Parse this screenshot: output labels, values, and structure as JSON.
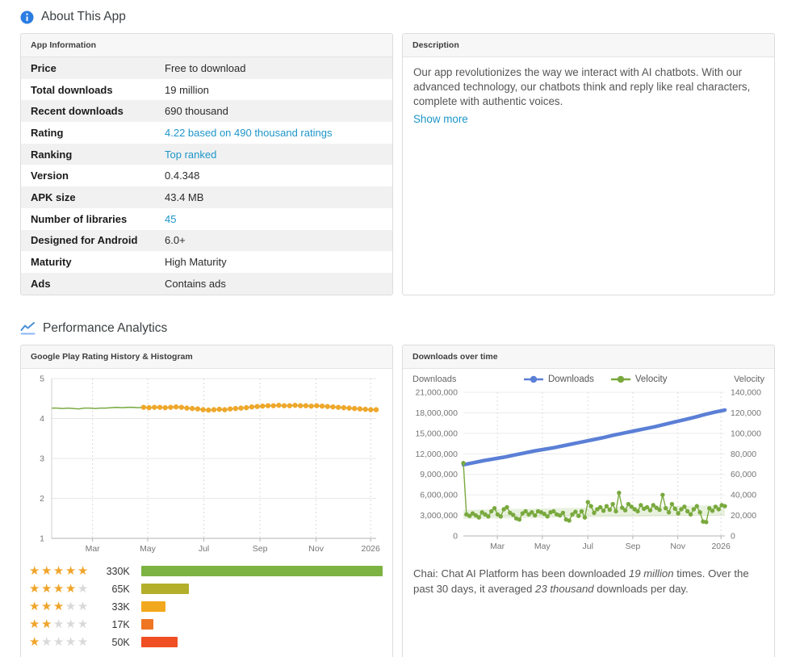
{
  "header": {
    "about_title": "About This App",
    "analytics_title": "Performance Analytics"
  },
  "app_info": {
    "panel_title": "App Information",
    "rows": [
      {
        "label": "Price",
        "value": "Free to download",
        "link": false
      },
      {
        "label": "Total downloads",
        "value": "19 million",
        "link": false
      },
      {
        "label": "Recent downloads",
        "value": "690 thousand",
        "link": false
      },
      {
        "label": "Rating",
        "value": "4.22 based on 490 thousand ratings",
        "link": true
      },
      {
        "label": "Ranking",
        "value": "Top ranked",
        "link": true
      },
      {
        "label": "Version",
        "value": "0.4.348",
        "link": false
      },
      {
        "label": "APK size",
        "value": "43.4 MB",
        "link": false
      },
      {
        "label": "Number of libraries",
        "value": "45",
        "link": true
      },
      {
        "label": "Designed for Android",
        "value": "6.0+",
        "link": false
      },
      {
        "label": "Maturity",
        "value": "High Maturity",
        "link": false
      },
      {
        "label": "Ads",
        "value": "Contains ads",
        "link": false
      }
    ]
  },
  "description": {
    "panel_title": "Description",
    "text": "Our app revolutionizes the way we interact with AI chatbots. With our advanced technology, our chatbots think and reply like real characters, complete with authentic voices.",
    "show_more_label": "Show more"
  },
  "rating_histogram": {
    "star_filled_color": "#f0a42a",
    "star_empty_color": "#d9d9d9",
    "max_value": 330,
    "rows": [
      {
        "stars": 5,
        "count_label": "330K",
        "value": 330,
        "bar_color": "#7cb342"
      },
      {
        "stars": 4,
        "count_label": "65K",
        "value": 65,
        "bar_color": "#b3af2b"
      },
      {
        "stars": 3,
        "count_label": "33K",
        "value": 33,
        "bar_color": "#f2a81d"
      },
      {
        "stars": 2,
        "count_label": "17K",
        "value": 17,
        "bar_color": "#ee7623"
      },
      {
        "stars": 1,
        "count_label": "50K",
        "value": 50,
        "bar_color": "#f04e23"
      }
    ]
  },
  "downloads_caption": {
    "segments": [
      {
        "text": "Chai: Chat AI Platform has been downloaded ",
        "italic": false
      },
      {
        "text": "19 million",
        "italic": true
      },
      {
        "text": " times. Over the past 30 days, it averaged ",
        "italic": false
      },
      {
        "text": "23 thousand",
        "italic": true
      },
      {
        "text": " downloads per day.",
        "italic": false
      }
    ]
  },
  "chart_data": [
    {
      "type": "line",
      "panel_title": "Google Play Rating History & Histogram",
      "ylim": [
        1,
        5
      ],
      "yticks": [
        5,
        4,
        3,
        2,
        1
      ],
      "x_tick_labels": [
        "Mar",
        "May",
        "Jul",
        "Sep",
        "Nov",
        "2026"
      ],
      "x_tick_positions": [
        0.126,
        0.296,
        0.469,
        0.642,
        0.815,
        0.983
      ],
      "line_color": "#7aab44",
      "dot_color": "#f0a72a",
      "dots_from_index": 17,
      "values": [
        4.26,
        4.26,
        4.25,
        4.26,
        4.25,
        4.24,
        4.26,
        4.26,
        4.25,
        4.26,
        4.26,
        4.27,
        4.28,
        4.27,
        4.28,
        4.28,
        4.27,
        4.28,
        4.27,
        4.28,
        4.28,
        4.27,
        4.28,
        4.29,
        4.28,
        4.26,
        4.25,
        4.24,
        4.22,
        4.21,
        4.22,
        4.23,
        4.22,
        4.24,
        4.25,
        4.26,
        4.27,
        4.29,
        4.3,
        4.31,
        4.32,
        4.32,
        4.33,
        4.32,
        4.32,
        4.33,
        4.32,
        4.32,
        4.31,
        4.32,
        4.31,
        4.3,
        4.29,
        4.28,
        4.27,
        4.26,
        4.25,
        4.24,
        4.23,
        4.22,
        4.22
      ]
    },
    {
      "type": "line-dual-axis",
      "panel_title": "Downloads over time",
      "left_axis": {
        "title": "Downloads",
        "max": 21000000,
        "tick_labels": [
          "21,000,000",
          "18,000,000",
          "15,000,000",
          "12,000,000",
          "9,000,000",
          "6,000,000",
          "3,000,000",
          "0"
        ]
      },
      "right_axis": {
        "title": "Velocity",
        "max": 140000,
        "tick_labels": [
          "140,000",
          "120,000",
          "100,000",
          "80,000",
          "60,000",
          "40,000",
          "20,000",
          "0"
        ]
      },
      "x_tick_labels": [
        "Mar",
        "May",
        "Jul",
        "Sep",
        "Nov",
        "2026"
      ],
      "x_tick_positions": [
        0.13,
        0.302,
        0.476,
        0.648,
        0.82,
        0.985
      ],
      "legend": [
        {
          "label": "Downloads",
          "color": "#5b7fd6"
        },
        {
          "label": "Velocity",
          "color": "#79a93e"
        }
      ],
      "downloads_series": {
        "name": "Downloads",
        "color": "#5b7fd6",
        "values": [
          10400000,
          10700000,
          11000000,
          11250000,
          11500000,
          11800000,
          12100000,
          12400000,
          12650000,
          12900000,
          13200000,
          13500000,
          13800000,
          14100000,
          14400000,
          14750000,
          15050000,
          15350000,
          15650000,
          15950000,
          16300000,
          16650000,
          17000000,
          17350000,
          17750000,
          18100000,
          18400000
        ]
      },
      "velocity_series": {
        "name": "Velocity",
        "color": "#79a93e",
        "band_color": "rgba(139,186,90,0.20)",
        "band": {
          "start": [
            16500,
            25500
          ],
          "end": [
            20000,
            30000
          ]
        },
        "values": [
          71000,
          21000,
          19500,
          22000,
          20000,
          18000,
          23000,
          21000,
          19000,
          24000,
          27000,
          21000,
          19000,
          26000,
          28000,
          22500,
          20500,
          17000,
          16000,
          22000,
          24000,
          21000,
          23000,
          20000,
          24000,
          23000,
          21500,
          19000,
          23000,
          24000,
          21000,
          20000,
          22500,
          16000,
          15000,
          21000,
          23500,
          19500,
          24000,
          18000,
          33000,
          29000,
          22500,
          26000,
          28000,
          24500,
          29000,
          25500,
          31000,
          24000,
          42000,
          27500,
          25000,
          31000,
          28500,
          26000,
          24000,
          30000,
          26500,
          28000,
          25000,
          30000,
          27500,
          25500,
          40000,
          27000,
          23000,
          31000,
          26500,
          22000,
          26000,
          28500,
          24000,
          21000,
          26000,
          29000,
          23000,
          14000,
          13500,
          27000,
          24500,
          28500,
          26000,
          30000,
          29000
        ]
      }
    }
  ]
}
